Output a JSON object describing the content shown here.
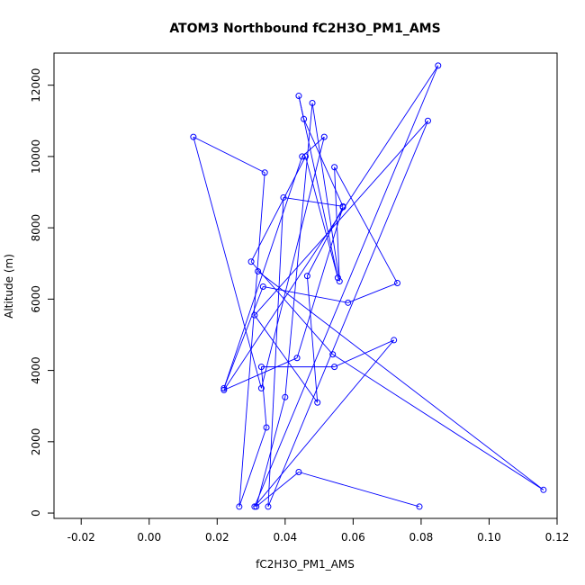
{
  "chart_data": {
    "type": "line",
    "title": "ATOM3 Northbound fC2H3O_PM1_AMS",
    "xlabel": "fC2H3O_PM1_AMS",
    "ylabel": "Altitude (m)",
    "xlim": [
      -0.028,
      0.12
    ],
    "ylim": [
      -150,
      12900
    ],
    "xticks": [
      -0.02,
      0.0,
      0.02,
      0.04,
      0.06,
      0.08,
      0.1,
      0.12
    ],
    "xtick_labels": [
      "-0.02",
      "0.00",
      "0.02",
      "0.04",
      "0.06",
      "0.08",
      "0.10",
      "0.12"
    ],
    "yticks": [
      0,
      2000,
      4000,
      6000,
      8000,
      10000,
      12000
    ],
    "ytick_labels": [
      "0",
      "2000",
      "4000",
      "6000",
      "8000",
      "10000",
      "12000"
    ],
    "grid": false,
    "series": [
      {
        "color": "#0000ff",
        "marker": "open-circle",
        "x": [
          0.0795,
          0.044,
          0.0315,
          0.04,
          0.048,
          0.056,
          0.0545,
          0.073,
          0.0585,
          0.0335,
          0.022,
          0.045,
          0.0515,
          0.033,
          0.013,
          0.034,
          0.0265,
          0.0345,
          0.033,
          0.0545,
          0.072,
          0.031,
          0.085,
          0.022,
          0.0435,
          0.057,
          0.0465,
          0.0495,
          0.031,
          0.082,
          0.035,
          0.0395,
          0.057,
          0.0455,
          0.044,
          0.0555,
          0.046,
          0.03,
          0.054,
          0.116,
          0.032
        ],
        "y": [
          180,
          1150,
          180,
          3250,
          11500,
          6500,
          9700,
          6450,
          5900,
          6350,
          3500,
          10000,
          10550,
          3500,
          10550,
          9550,
          180,
          2400,
          4100,
          4100,
          4850,
          180,
          12550,
          3450,
          4350,
          8580,
          6650,
          3100,
          5550,
          11000,
          180,
          8850,
          8600,
          11050,
          11700,
          6600,
          10000,
          7050,
          4450,
          650,
          6780
        ]
      }
    ]
  }
}
